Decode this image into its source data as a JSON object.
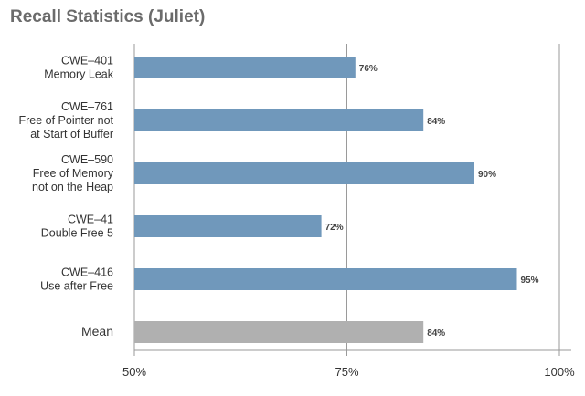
{
  "chart_data": {
    "type": "bar",
    "orientation": "horizontal",
    "title": "Recall Statistics (Juliet)",
    "xlabel": "",
    "ylabel": "",
    "xlim": [
      50,
      100
    ],
    "x_ticks": [
      50,
      75,
      100
    ],
    "x_tick_labels": [
      "50%",
      "75%",
      "100%"
    ],
    "grid": "vertical at ticks",
    "categories": [
      [
        "CWE–401",
        "Memory Leak"
      ],
      [
        "CWE–761",
        "Free of Pointer not",
        "at Start of Buffer"
      ],
      [
        "CWE–590",
        "Free of Memory",
        "not on the Heap"
      ],
      [
        "CWE–41",
        "Double Free 5"
      ],
      [
        "CWE–416",
        "Use after Free"
      ],
      [
        "Mean"
      ]
    ],
    "values": [
      76,
      84,
      90,
      72,
      95,
      84
    ],
    "data_labels": [
      "76%",
      "84%",
      "90%",
      "72%",
      "95%",
      "84%"
    ],
    "colors": [
      "#7098bb",
      "#7098bb",
      "#7098bb",
      "#7098bb",
      "#7098bb",
      "#b0b0b0"
    ]
  },
  "colors": {
    "bar": "#7098bb",
    "mean_bar": "#b0b0b0",
    "grid": "#9a9a9a",
    "title": "#6b6b6b"
  }
}
